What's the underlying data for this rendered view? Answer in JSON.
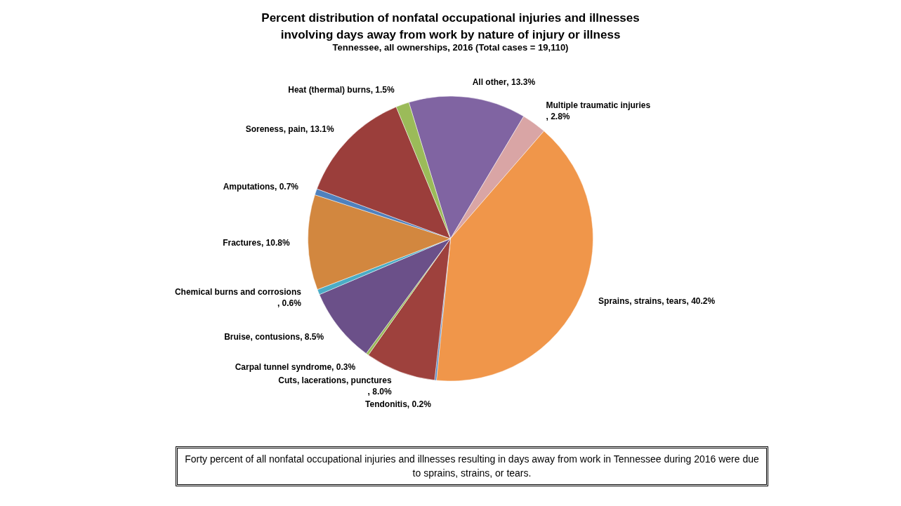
{
  "chart_data": {
    "type": "pie",
    "title": "Percent distribution of nonfatal occupational injuries and illnesses involving days away from work by nature of injury or illness",
    "subtitle": "Tennessee, all ownerships, 2016 (Total cases = 19,110)",
    "categories": [
      "All other",
      "Multiple traumatic injuries",
      "Sprains, strains, tears",
      "Tendonitis",
      "Cuts, lacerations, punctures",
      "Carpal tunnel syndrome",
      "Bruise, contusions",
      "Chemical burns and corrosions",
      "Fractures",
      "Amputations",
      "Soreness, pain",
      "Heat (thermal) burns"
    ],
    "values": [
      13.3,
      2.8,
      40.2,
      0.2,
      8.0,
      0.3,
      8.5,
      0.6,
      10.8,
      0.7,
      13.1,
      1.5
    ],
    "colors": [
      "#8064a2",
      "#d9a5a5",
      "#f0964a",
      "#4f81bd",
      "#9e413d",
      "#9bbb59",
      "#6b5089",
      "#4bacc6",
      "#d2873f",
      "#4f81bd",
      "#9b3e3b",
      "#9bbb59"
    ],
    "value_labels": [
      ", 13.3%",
      ", 2.8%",
      ", 40.2%",
      ", 0.2%",
      ", 8.0%",
      ", 0.3%",
      ", 8.5%",
      ", 0.6%",
      ", 10.8%",
      ", 0.7%",
      ", 13.1%",
      ", 1.5%"
    ],
    "annotations": [
      "Forty percent of all nonfatal occupational injuries and illnesses resulting in days away from work in Tennessee during 2016 were due to sprains, strains, or tears."
    ]
  }
}
